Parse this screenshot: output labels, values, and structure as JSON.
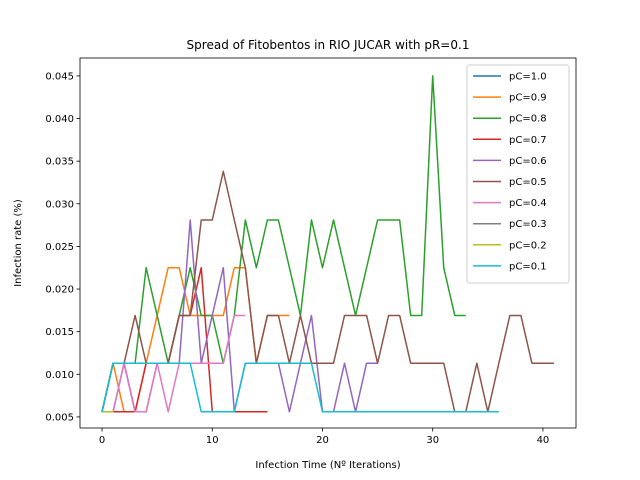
{
  "chart_data": {
    "type": "line",
    "title": "Spread of Fitobentos in RIO JUCAR with pR=0.1",
    "xlabel": "Infection Time (Nº Iterations)",
    "ylabel": "Infection rate (%)",
    "xlim": [
      -2,
      43
    ],
    "ylim": [
      0.0037,
      0.0471
    ],
    "xticks": [
      0,
      10,
      20,
      30,
      40
    ],
    "yticks": [
      0.005,
      0.01,
      0.015,
      0.02,
      0.025,
      0.03,
      0.035,
      0.04,
      0.045
    ],
    "ytick_labels": [
      "0.005",
      "0.010",
      "0.015",
      "0.020",
      "0.025",
      "0.030",
      "0.035",
      "0.040",
      "0.045"
    ],
    "grid": false,
    "legend_position": "top-right",
    "series": [
      {
        "name": "pC=1.0",
        "color": "#1f77b4",
        "x": [
          0,
          1,
          2,
          3
        ],
        "y": [
          0.0056,
          0.0113,
          0.0113,
          0.0056
        ]
      },
      {
        "name": "pC=0.9",
        "color": "#ff7f0e",
        "x": [
          0,
          1,
          2,
          3,
          4,
          5,
          6,
          7,
          8,
          9,
          10,
          11,
          12,
          13,
          14,
          15,
          16,
          17
        ],
        "y": [
          0.0056,
          0.0113,
          0.0056,
          0.0056,
          0.0113,
          0.0169,
          0.0225,
          0.0225,
          0.0169,
          0.0169,
          0.0169,
          0.0169,
          0.0225,
          0.0225,
          0.0113,
          0.0169,
          0.0169,
          0.0169
        ]
      },
      {
        "name": "pC=0.8",
        "color": "#2ca02c",
        "x": [
          0,
          1,
          2,
          3,
          4,
          5,
          6,
          7,
          8,
          9,
          10,
          11,
          12,
          13,
          14,
          15,
          16,
          17,
          18,
          19,
          20,
          21,
          22,
          23,
          24,
          25,
          26,
          27,
          28,
          29,
          30,
          31,
          32,
          33
        ],
        "y": [
          0.0056,
          0.0113,
          0.0113,
          0.0113,
          0.0225,
          0.0169,
          0.0113,
          0.0169,
          0.0225,
          0.0169,
          0.0169,
          0.0113,
          0.0169,
          0.0281,
          0.0225,
          0.0281,
          0.0281,
          0.0225,
          0.0169,
          0.0281,
          0.0225,
          0.0281,
          0.0225,
          0.0169,
          0.0225,
          0.0281,
          0.0281,
          0.0281,
          0.0169,
          0.0169,
          0.045,
          0.0225,
          0.0169,
          0.0169
        ]
      },
      {
        "name": "pC=0.7",
        "color": "#d62728",
        "x": [
          0,
          1,
          2,
          3,
          4,
          5,
          6,
          7,
          8,
          9,
          10,
          11,
          12,
          13,
          14,
          15
        ],
        "y": [
          0.0056,
          0.0056,
          0.0056,
          0.0056,
          0.0113,
          0.0113,
          0.0113,
          0.0169,
          0.0169,
          0.0225,
          0.0056,
          0.0056,
          0.0056,
          0.0056,
          0.0056,
          0.0056
        ]
      },
      {
        "name": "pC=0.6",
        "color": "#9467bd",
        "x": [
          0,
          1,
          2,
          3,
          4,
          5,
          6,
          7,
          8,
          9,
          10,
          11,
          12,
          13,
          14,
          15,
          16,
          17,
          18,
          19,
          20,
          21,
          22,
          23,
          24,
          25
        ],
        "y": [
          0.0056,
          0.0056,
          0.0113,
          0.0056,
          0.0056,
          0.0113,
          0.0113,
          0.0113,
          0.0281,
          0.0113,
          0.0169,
          0.0225,
          0.0056,
          0.0113,
          0.0113,
          0.0113,
          0.0113,
          0.0056,
          0.0113,
          0.0169,
          0.0056,
          0.0056,
          0.0113,
          0.0056,
          0.0113,
          0.0113
        ]
      },
      {
        "name": "pC=0.5",
        "color": "#8c564b",
        "x": [
          0,
          1,
          2,
          3,
          4,
          5,
          6,
          7,
          8,
          9,
          10,
          11,
          12,
          13,
          14,
          15,
          16,
          17,
          18,
          19,
          20,
          21,
          22,
          23,
          24,
          25,
          26,
          27,
          28,
          29,
          30,
          31,
          32,
          33,
          34,
          35,
          36,
          37,
          38,
          39,
          40,
          41
        ],
        "y": [
          0.0056,
          0.0113,
          0.0113,
          0.0169,
          0.0113,
          0.0113,
          0.0113,
          0.0169,
          0.0169,
          0.0281,
          0.0281,
          0.0338,
          0.0281,
          0.0225,
          0.0113,
          0.0169,
          0.0169,
          0.0113,
          0.0169,
          0.0113,
          0.0113,
          0.0113,
          0.0169,
          0.0169,
          0.0169,
          0.0113,
          0.0169,
          0.0169,
          0.0113,
          0.0113,
          0.0113,
          0.0113,
          0.0056,
          0.0056,
          0.0113,
          0.0056,
          0.0113,
          0.0169,
          0.0169,
          0.0113,
          0.0113,
          0.0113
        ]
      },
      {
        "name": "pC=0.4",
        "color": "#e377c2",
        "x": [
          0,
          1,
          2,
          3,
          4,
          5,
          6,
          7,
          8,
          9,
          10,
          11,
          12,
          13
        ],
        "y": [
          0.0056,
          0.0056,
          0.0113,
          0.0056,
          0.0056,
          0.0113,
          0.0056,
          0.0113,
          0.0113,
          0.0113,
          0.0113,
          0.0113,
          0.0169,
          0.0169
        ]
      },
      {
        "name": "pC=0.3",
        "color": "#7f7f7f",
        "x": [
          0,
          1,
          2,
          3,
          4,
          5,
          6,
          7,
          8
        ],
        "y": [
          0.0056,
          0.0113,
          0.0113,
          0.0113,
          0.0113,
          0.0113,
          0.0113,
          0.0113,
          0.0113
        ]
      },
      {
        "name": "pC=0.2",
        "color": "#bcbd22",
        "x": [
          0,
          1
        ],
        "y": [
          0.0056,
          0.0056
        ]
      },
      {
        "name": "pC=0.1",
        "color": "#17becf",
        "x": [
          0,
          1,
          2,
          3,
          4,
          5,
          6,
          7,
          8,
          9,
          10,
          11,
          12,
          13,
          14,
          15,
          16,
          17,
          18,
          19,
          20,
          21,
          22,
          23,
          24,
          25,
          26,
          27,
          28,
          29,
          30,
          31,
          32,
          33,
          34,
          35,
          36
        ],
        "y": [
          0.0056,
          0.0113,
          0.0113,
          0.0113,
          0.0113,
          0.0113,
          0.0113,
          0.0113,
          0.0113,
          0.0056,
          0.0056,
          0.0056,
          0.0056,
          0.0113,
          0.0113,
          0.0113,
          0.0113,
          0.0113,
          0.0113,
          0.0113,
          0.0056,
          0.0056,
          0.0056,
          0.0056,
          0.0056,
          0.0056,
          0.0056,
          0.0056,
          0.0056,
          0.0056,
          0.0056,
          0.0056,
          0.0056,
          0.0056,
          0.0056,
          0.0056,
          0.0056
        ]
      }
    ]
  }
}
